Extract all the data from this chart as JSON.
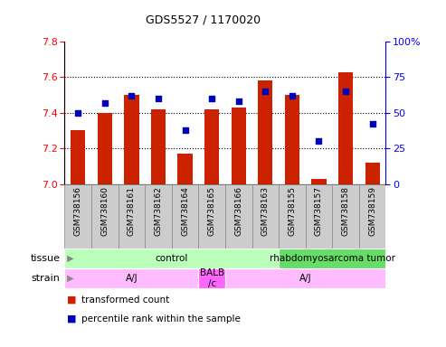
{
  "title": "GDS5527 / 1170020",
  "samples": [
    "GSM738156",
    "GSM738160",
    "GSM738161",
    "GSM738162",
    "GSM738164",
    "GSM738165",
    "GSM738166",
    "GSM738163",
    "GSM738155",
    "GSM738157",
    "GSM738158",
    "GSM738159"
  ],
  "bar_values": [
    7.3,
    7.4,
    7.5,
    7.42,
    7.17,
    7.42,
    7.43,
    7.58,
    7.5,
    7.03,
    7.63,
    7.12
  ],
  "dot_values": [
    50,
    57,
    62,
    60,
    38,
    60,
    58,
    65,
    62,
    30,
    65,
    42
  ],
  "ylim_left": [
    7.0,
    7.8
  ],
  "ylim_right": [
    0,
    100
  ],
  "yticks_left": [
    7.0,
    7.2,
    7.4,
    7.6,
    7.8
  ],
  "yticks_right": [
    0,
    25,
    50,
    75,
    100
  ],
  "bar_color": "#cc2200",
  "dot_color": "#0000bb",
  "bar_bottom": 7.0,
  "tissue_groups": [
    {
      "label": "control",
      "start": 0,
      "end": 8,
      "color": "#bbffbb"
    },
    {
      "label": "rhabdomyosarcoma tumor",
      "start": 8,
      "end": 12,
      "color": "#66dd66"
    }
  ],
  "strain_groups": [
    {
      "label": "A/J",
      "start": 0,
      "end": 5,
      "color": "#ffbbff"
    },
    {
      "label": "BALB\n/c",
      "start": 5,
      "end": 6,
      "color": "#ff66ff"
    },
    {
      "label": "A/J",
      "start": 6,
      "end": 12,
      "color": "#ffbbff"
    }
  ],
  "tissue_label": "tissue",
  "strain_label": "strain",
  "legend_labels": [
    "transformed count",
    "percentile rank within the sample"
  ],
  "legend_colors": [
    "#cc2200",
    "#0000bb"
  ],
  "grid_yticks": [
    7.2,
    7.4,
    7.6
  ],
  "label_box_color": "#cccccc",
  "label_box_edge": "#888888"
}
